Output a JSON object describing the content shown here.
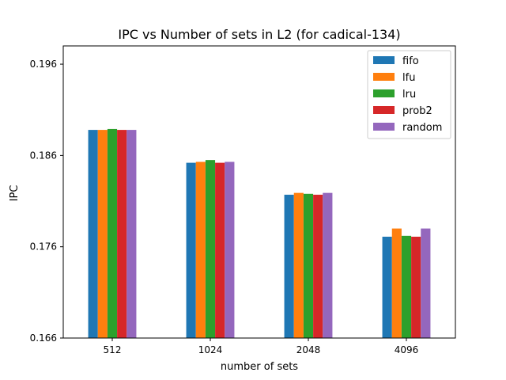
{
  "chart_data": {
    "type": "bar",
    "title": "IPC vs Number of sets in L2 (for cadical-134)",
    "xlabel": "number of sets",
    "ylabel": "IPC",
    "categories": [
      "512",
      "1024",
      "2048",
      "4096"
    ],
    "ylim": [
      0.166,
      0.198
    ],
    "yticks": [
      "0.166",
      "0.176",
      "0.186",
      "0.196"
    ],
    "grid": false,
    "legend_position": "top-right",
    "series": [
      {
        "name": "fifo",
        "color": "#1f77b4",
        "values": [
          0.1888,
          0.1852,
          0.1817,
          0.1771
        ]
      },
      {
        "name": "lfu",
        "color": "#ff7f0e",
        "values": [
          0.1888,
          0.1853,
          0.1819,
          0.178
        ]
      },
      {
        "name": "lru",
        "color": "#2ca02c",
        "values": [
          0.1889,
          0.1855,
          0.1818,
          0.1772
        ]
      },
      {
        "name": "prob2",
        "color": "#d62728",
        "values": [
          0.1888,
          0.1852,
          0.1817,
          0.1771
        ]
      },
      {
        "name": "random",
        "color": "#9467bd",
        "values": [
          0.1888,
          0.1853,
          0.1819,
          0.178
        ]
      }
    ]
  }
}
